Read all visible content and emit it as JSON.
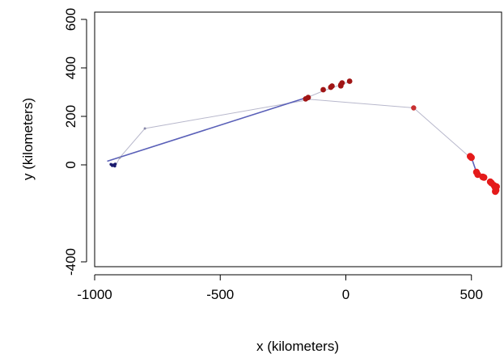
{
  "chart_data": {
    "type": "scatter",
    "title": "",
    "xlabel": "x (kilometers)",
    "ylabel": "y (kilometers)",
    "xlim": [
      -1000,
      620
    ],
    "ylim": [
      -420,
      630
    ],
    "xticks": [
      -1000,
      -500,
      0,
      500
    ],
    "xtick_labels": [
      "-1000",
      "-500",
      "0",
      "500"
    ],
    "yticks": [
      -400,
      0,
      200,
      400,
      600
    ],
    "ytick_labels": [
      "-400",
      "0",
      "200",
      "400",
      "600"
    ],
    "grid": false,
    "legend": "none",
    "series": [
      {
        "kind": "line",
        "color": "#b8b8cc",
        "points": [
          {
            "x": -915,
            "y": 0
          },
          {
            "x": -900,
            "y": 30
          },
          {
            "x": -800,
            "y": 150
          },
          {
            "x": -140,
            "y": 270
          },
          {
            "x": 270,
            "y": 235
          },
          {
            "x": 490,
            "y": 35
          }
        ]
      },
      {
        "kind": "line",
        "color": "#b8b8cc",
        "points": [
          {
            "x": -160,
            "y": 275
          },
          {
            "x": -90,
            "y": 305
          },
          {
            "x": 20,
            "y": 345
          }
        ]
      },
      {
        "kind": "line",
        "color": "#5a60b8",
        "points": [
          {
            "x": -950,
            "y": 15
          },
          {
            "x": -155,
            "y": 278
          }
        ]
      },
      {
        "kind": "line",
        "color": "#5a60b8",
        "points": [
          {
            "x": 500,
            "y": 30
          },
          {
            "x": 520,
            "y": -30
          }
        ]
      },
      {
        "kind": "points",
        "color": "#1a1a6e",
        "size": 1.8,
        "points": [
          {
            "x": -935,
            "y": 2
          },
          {
            "x": -930,
            "y": -3
          },
          {
            "x": -925,
            "y": 0
          },
          {
            "x": -920,
            "y": -5
          },
          {
            "x": -918,
            "y": 3
          }
        ]
      },
      {
        "kind": "points",
        "color": "#8888aa",
        "size": 1.5,
        "points": [
          {
            "x": -800,
            "y": 150
          },
          {
            "x": -900,
            "y": 30
          }
        ]
      },
      {
        "kind": "points",
        "color": "#a01515",
        "size": 3.4,
        "points": [
          {
            "x": -160,
            "y": 272
          },
          {
            "x": -150,
            "y": 278
          },
          {
            "x": -90,
            "y": 310
          },
          {
            "x": -60,
            "y": 320
          },
          {
            "x": -55,
            "y": 325
          },
          {
            "x": -20,
            "y": 330
          },
          {
            "x": -15,
            "y": 338
          },
          {
            "x": -20,
            "y": 326
          },
          {
            "x": 15,
            "y": 345
          }
        ]
      },
      {
        "kind": "points",
        "color": "#c83030",
        "size": 3.2,
        "points": [
          {
            "x": 270,
            "y": 235
          }
        ]
      },
      {
        "kind": "points",
        "color": "#e41a1a",
        "size": 4.2,
        "points": [
          {
            "x": 495,
            "y": 35
          },
          {
            "x": 500,
            "y": 30
          },
          {
            "x": 520,
            "y": -30
          },
          {
            "x": 525,
            "y": -40
          },
          {
            "x": 545,
            "y": -50
          },
          {
            "x": 550,
            "y": -52
          },
          {
            "x": 575,
            "y": -70
          },
          {
            "x": 580,
            "y": -75
          },
          {
            "x": 590,
            "y": -85
          },
          {
            "x": 595,
            "y": -95
          },
          {
            "x": 600,
            "y": -90
          },
          {
            "x": 595,
            "y": -110
          },
          {
            "x": 598,
            "y": -105
          }
        ]
      }
    ]
  }
}
